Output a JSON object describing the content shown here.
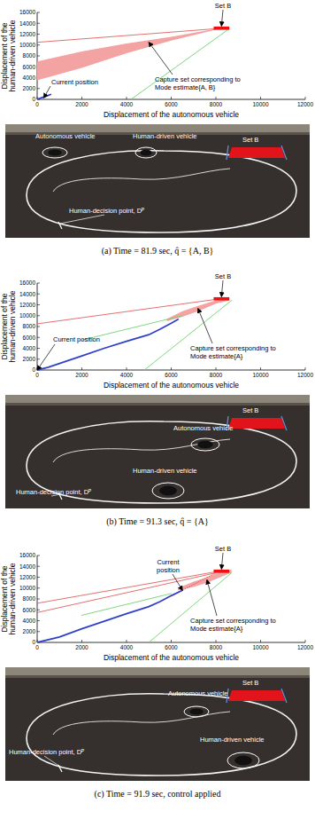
{
  "chart_data": [
    {
      "type": "line",
      "x_label": "Displacement of the autonomous vehicle",
      "y_label": "Displacement of the human-driven vehicle",
      "xlim": [
        0,
        12000
      ],
      "ylim": [
        0,
        16000
      ],
      "xticks": [
        0,
        2000,
        4000,
        6000,
        8000,
        10000,
        12000
      ],
      "yticks": [
        0,
        2000,
        4000,
        6000,
        8000,
        10000,
        12000,
        14000,
        16000
      ],
      "series": [
        {
          "type": "area",
          "color": "#f4a3a3",
          "x": [
            0,
            2000,
            4000,
            6000,
            8000
          ],
          "values": [
            7000,
            8800,
            10300,
            11500,
            13000
          ],
          "lower": [
            3500,
            5800,
            8500,
            10800,
            12800
          ]
        },
        {
          "type": "line",
          "color": "#e06060",
          "line_style": "solid",
          "x": [
            0,
            8000
          ],
          "values": [
            10500,
            13000
          ]
        },
        {
          "type": "line",
          "color": "#6fd36f",
          "line_style": "solid",
          "x": [
            4200,
            8600
          ],
          "values": [
            0,
            13000
          ]
        },
        {
          "type": "line",
          "color": "#3040c8",
          "line_style": "solid",
          "x": [
            0,
            200,
            400,
            600
          ],
          "values": [
            0,
            300,
            600,
            900
          ]
        },
        {
          "type": "rect",
          "color": "#ee1111",
          "x": [
            7900,
            8600
          ],
          "values": [
            12800,
            13400
          ]
        }
      ],
      "annotations": [
        {
          "lines": [
            "Set B"
          ],
          "x": 8250,
          "y": 13500
        },
        {
          "lines": [
            "Current position"
          ],
          "x": 300,
          "y": 300
        },
        {
          "lines": [
            "Capture set corresponding to",
            "Mode estimate{A, B}"
          ],
          "x": 5000,
          "y": 10500
        }
      ]
    },
    {
      "type": "line",
      "x_label": "Displacement of the autonomous vehicle",
      "y_label": "Displacement of the human-driven vehicle",
      "xlim": [
        0,
        12000
      ],
      "ylim": [
        0,
        16000
      ],
      "xticks": [
        0,
        2000,
        4000,
        6000,
        8000,
        10000,
        12000
      ],
      "yticks": [
        0,
        2000,
        4000,
        6000,
        8000,
        10000,
        12000,
        14000,
        16000
      ],
      "series": [
        {
          "type": "area",
          "color": "#f4a3a3",
          "x": [
            5800,
            6500,
            7200,
            8000,
            8600
          ],
          "values": [
            9400,
            10800,
            11800,
            12800,
            13300
          ],
          "lower": [
            9000,
            9800,
            10800,
            12200,
            12800
          ]
        },
        {
          "type": "line",
          "color": "#e06060",
          "line_style": "solid",
          "x": [
            0,
            8000
          ],
          "values": [
            8500,
            13000
          ]
        },
        {
          "type": "line",
          "color": "#6fd36f",
          "line_style": "solid",
          "x": [
            4800,
            8700
          ],
          "values": [
            0,
            12800
          ]
        },
        {
          "type": "line",
          "color": "#6fd36f",
          "line_style": "solid",
          "x": [
            2000,
            6500
          ],
          "values": [
            5500,
            10000
          ]
        },
        {
          "type": "line",
          "color": "#3040c8",
          "line_style": "solid",
          "x": [
            0,
            500,
            1000,
            2000,
            3000,
            4000,
            5000,
            5500,
            6000,
            6300
          ],
          "values": [
            0,
            500,
            1200,
            2600,
            4000,
            5300,
            6500,
            7500,
            8600,
            9300
          ]
        },
        {
          "type": "rect",
          "color": "#ee1111",
          "x": [
            7900,
            8600
          ],
          "values": [
            12800,
            13400
          ]
        }
      ],
      "annotations": [
        {
          "lines": [
            "Set B"
          ],
          "x": 8250,
          "y": 13500
        },
        {
          "lines": [
            "Current position"
          ],
          "x": 0,
          "y": 0
        },
        {
          "lines": [
            "Capture set corresponding to",
            "Mode estimate{A}"
          ],
          "x": 7200,
          "y": 11300
        }
      ]
    },
    {
      "type": "line",
      "x_label": "Displacement of the autonomous vehicle",
      "y_label": "Displacement of the human-driven vehicle",
      "xlim": [
        0,
        12000
      ],
      "ylim": [
        0,
        16000
      ],
      "xticks": [
        0,
        2000,
        4000,
        6000,
        8000,
        10000,
        12000
      ],
      "yticks": [
        0,
        2000,
        4000,
        6000,
        8000,
        10000,
        12000,
        14000,
        16000
      ],
      "series": [
        {
          "type": "area",
          "color": "#f4a3a3",
          "x": [
            6300,
            7000,
            7600,
            8200,
            8700
          ],
          "values": [
            10000,
            11200,
            12000,
            13000,
            13400
          ],
          "lower": [
            9600,
            10200,
            11000,
            12000,
            12800
          ]
        },
        {
          "type": "line",
          "color": "#e06060",
          "line_style": "solid",
          "x": [
            0,
            8000
          ],
          "values": [
            7200,
            13000
          ]
        },
        {
          "type": "line",
          "color": "#e06060",
          "line_style": "solid",
          "x": [
            0,
            8000
          ],
          "values": [
            5500,
            12800
          ]
        },
        {
          "type": "line",
          "color": "#6fd36f",
          "line_style": "solid",
          "x": [
            2000,
            6000
          ],
          "values": [
            5000,
            9000
          ]
        },
        {
          "type": "line",
          "color": "#6fd36f",
          "line_style": "solid",
          "x": [
            5000,
            8700
          ],
          "values": [
            0,
            12800
          ]
        },
        {
          "type": "line",
          "color": "#3040c8",
          "line_style": "solid",
          "x": [
            0,
            1000,
            2000,
            3000,
            4000,
            5000,
            5500,
            6000,
            6500
          ],
          "values": [
            0,
            1000,
            2500,
            3900,
            5300,
            6600,
            7500,
            8600,
            9600
          ]
        },
        {
          "type": "line",
          "color": "#e06060",
          "line_style": "dotted",
          "x": [
            6500,
            8000
          ],
          "values": [
            9600,
            12800
          ]
        },
        {
          "type": "rect",
          "color": "#ee1111",
          "x": [
            7900,
            8600
          ],
          "values": [
            12800,
            13400
          ]
        }
      ],
      "annotations": [
        {
          "lines": [
            "Set B"
          ],
          "x": 8250,
          "y": 13500
        },
        {
          "lines": [
            "Current",
            "position"
          ],
          "x": 6500,
          "y": 9600
        },
        {
          "lines": [
            "Capture set corresponding to",
            "Mode estimate{A}"
          ],
          "x": 7600,
          "y": 11500
        }
      ]
    }
  ],
  "panels": [
    {
      "caption": "(a) Time = 81.9 sec, q̂ = {A, B}",
      "photo_labels": [
        "Autonomous vehicle",
        "Human-driven vehicle",
        "Set B",
        "Human-decision point, Dᴾ"
      ]
    },
    {
      "caption": "(b) Time = 91.3 sec, q̂ = {A}",
      "photo_labels": [
        "Autonomous vehicle",
        "Human-driven vehicle",
        "Set B",
        "Human-decision point, Dᴾ"
      ]
    },
    {
      "caption": "(c) Time = 91.9 sec, control applied",
      "photo_labels": [
        "Autonomous vehicle",
        "Human-driven vehicle",
        "Set B",
        "Human-decision point, Dᴾ"
      ]
    }
  ]
}
